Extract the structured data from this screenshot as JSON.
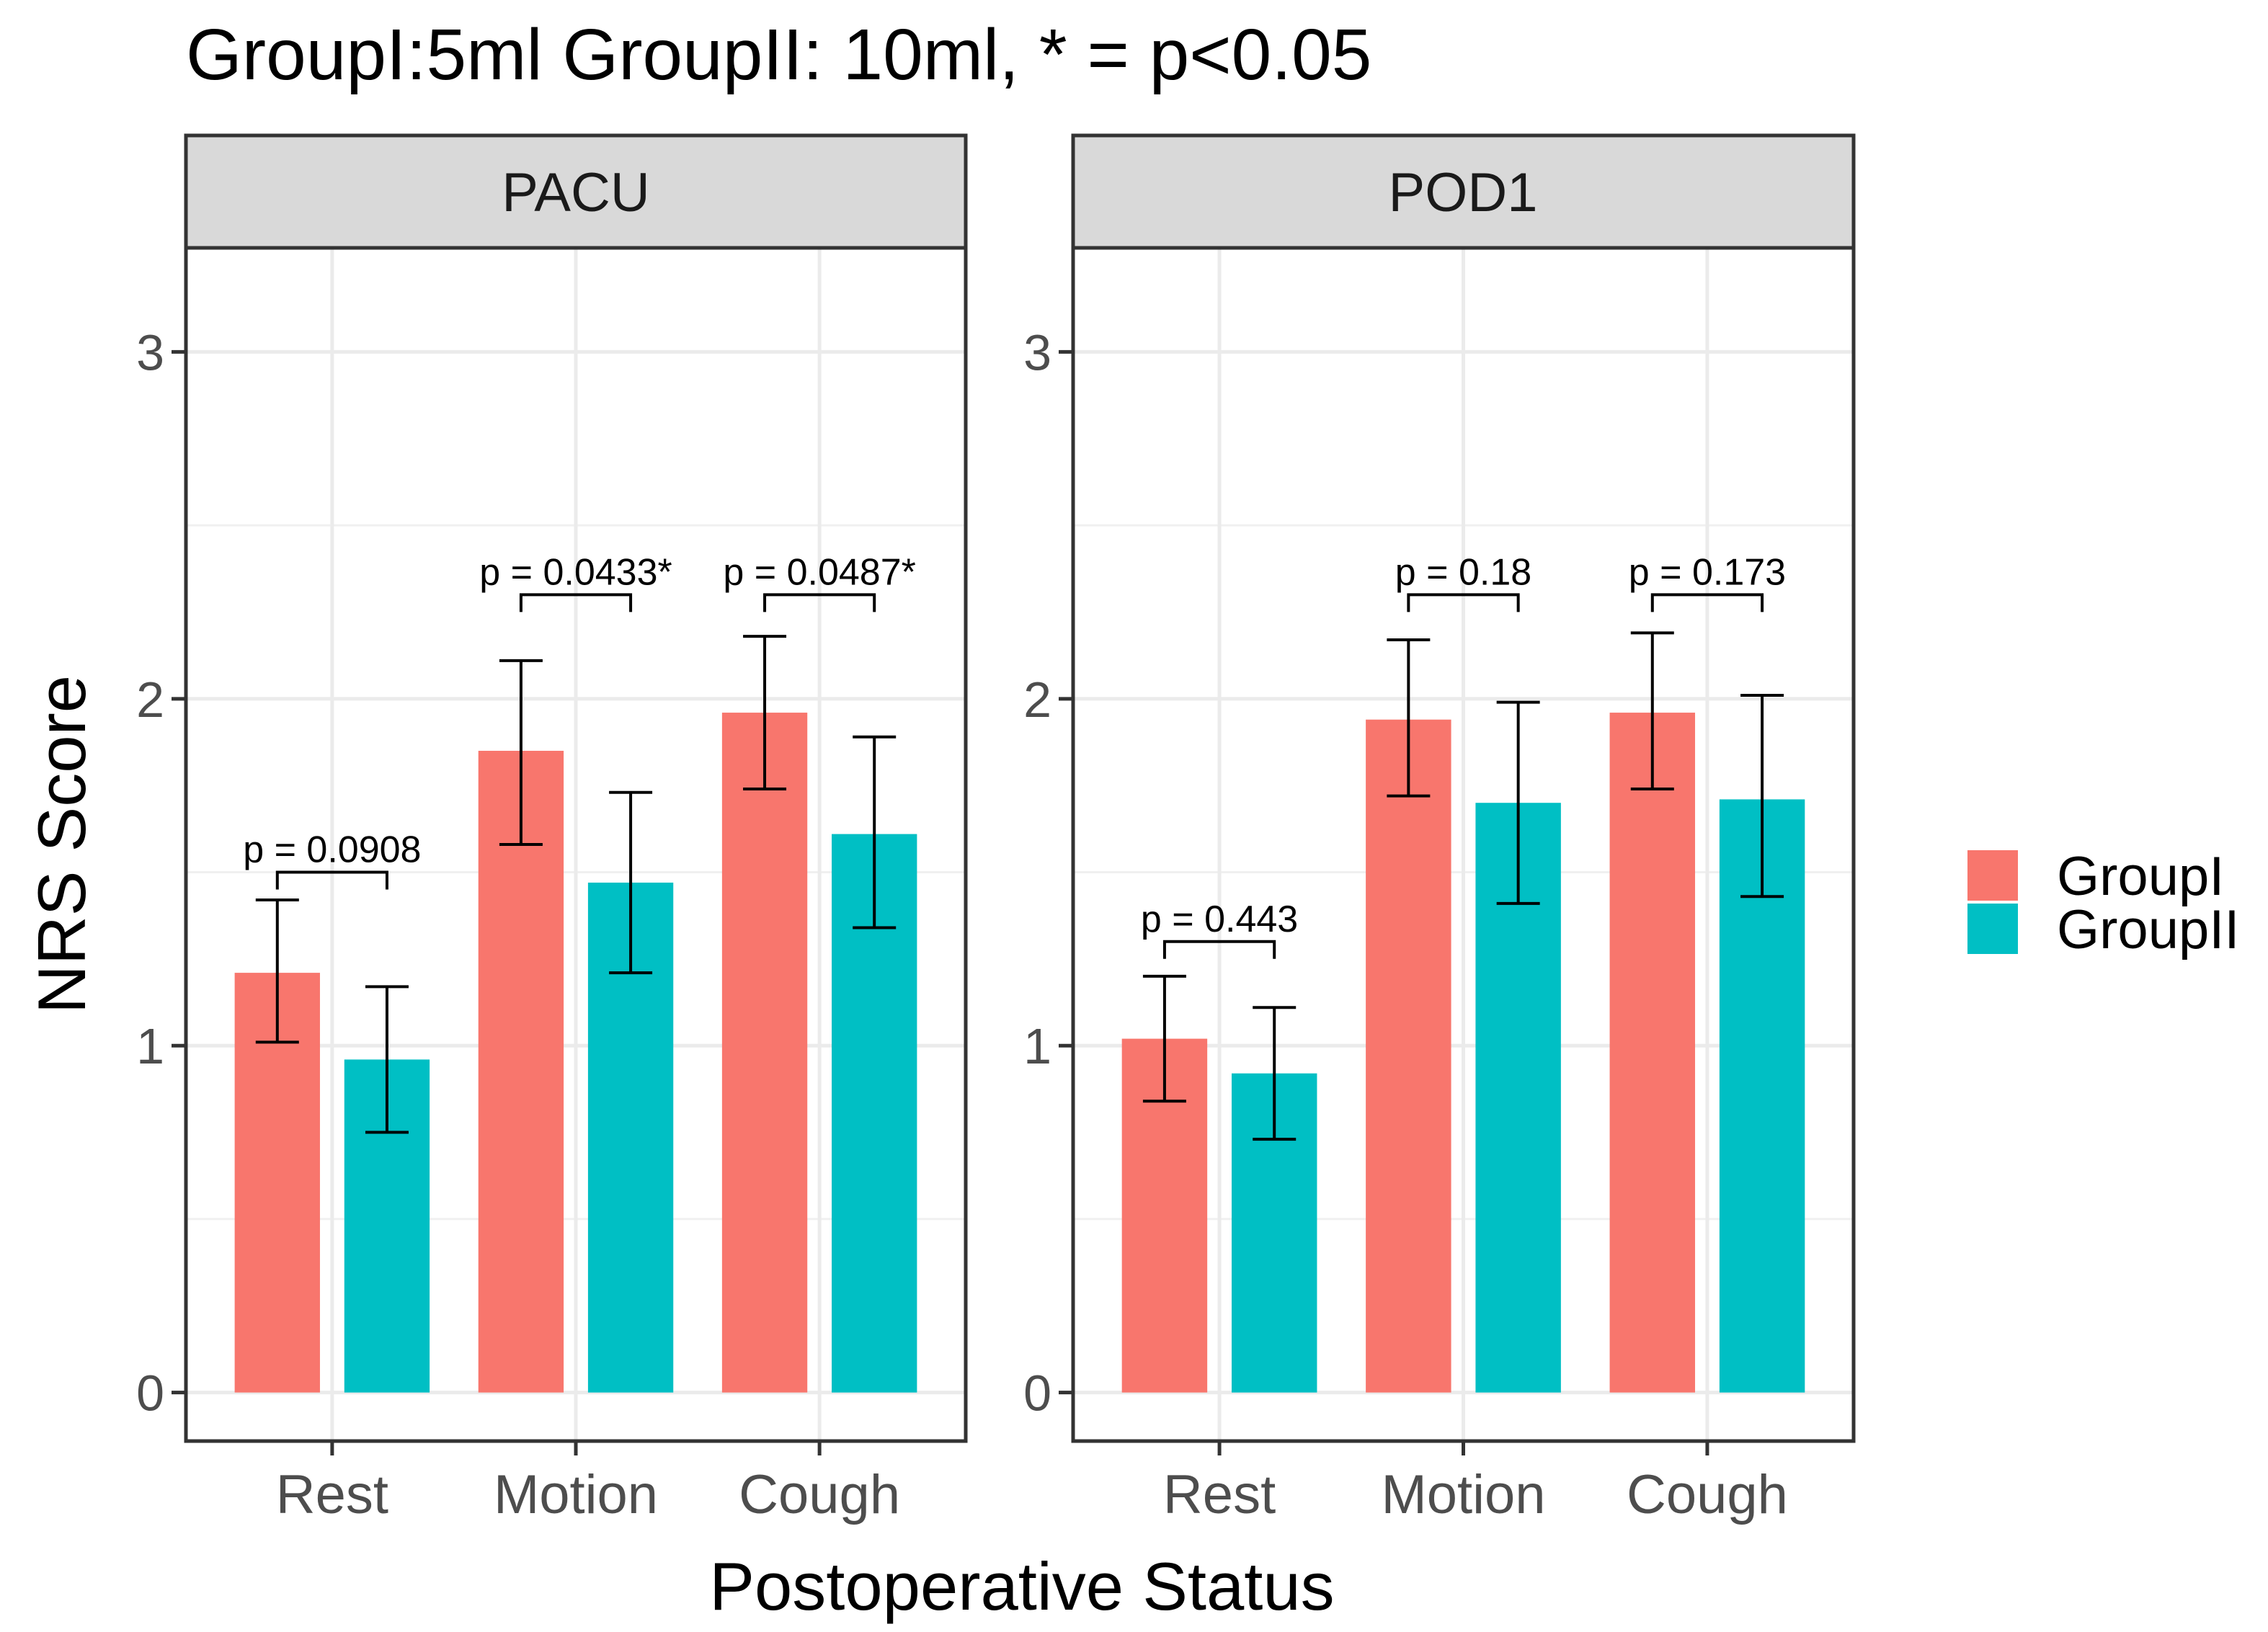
{
  "chart_data": {
    "type": "bar",
    "title": "GroupI:5ml GroupII: 10ml, * = p<0.05",
    "xlabel": "Postoperative Status",
    "ylabel": "NRS Score",
    "ylim": [
      -0.14,
      3.3
    ],
    "yticks": [
      0,
      1,
      2,
      3
    ],
    "categories": [
      "Rest",
      "Motion",
      "Cough"
    ],
    "legend": {
      "position": "right",
      "entries": [
        {
          "name": "GroupI",
          "color": "#F8766D"
        },
        {
          "name": "GroupII",
          "color": "#00BFC4"
        }
      ]
    },
    "panels": [
      {
        "name": "PACU",
        "series": [
          {
            "name": "GroupI",
            "values": [
              1.21,
              1.85,
              1.96
            ],
            "err_low": [
              1.01,
              1.58,
              1.74
            ],
            "err_high": [
              1.42,
              2.11,
              2.18
            ]
          },
          {
            "name": "GroupII",
            "values": [
              0.96,
              1.47,
              1.61
            ],
            "err_low": [
              0.75,
              1.21,
              1.34
            ],
            "err_high": [
              1.17,
              1.73,
              1.89
            ]
          }
        ],
        "p_values": [
          "p = 0.0908",
          "p = 0.0433*",
          "p = 0.0487*"
        ],
        "bracket_y": [
          1.5,
          2.3,
          2.3
        ]
      },
      {
        "name": "POD1",
        "series": [
          {
            "name": "GroupI",
            "values": [
              1.02,
              1.94,
              1.96
            ],
            "err_low": [
              0.84,
              1.72,
              1.74
            ],
            "err_high": [
              1.2,
              2.17,
              2.19
            ]
          },
          {
            "name": "GroupII",
            "values": [
              0.92,
              1.7,
              1.71
            ],
            "err_low": [
              0.73,
              1.41,
              1.43
            ],
            "err_high": [
              1.11,
              1.99,
              2.01
            ]
          }
        ],
        "p_values": [
          "p = 0.443",
          "p = 0.18",
          "p = 0.173"
        ],
        "bracket_y": [
          1.3,
          2.3,
          2.3
        ]
      }
    ]
  }
}
